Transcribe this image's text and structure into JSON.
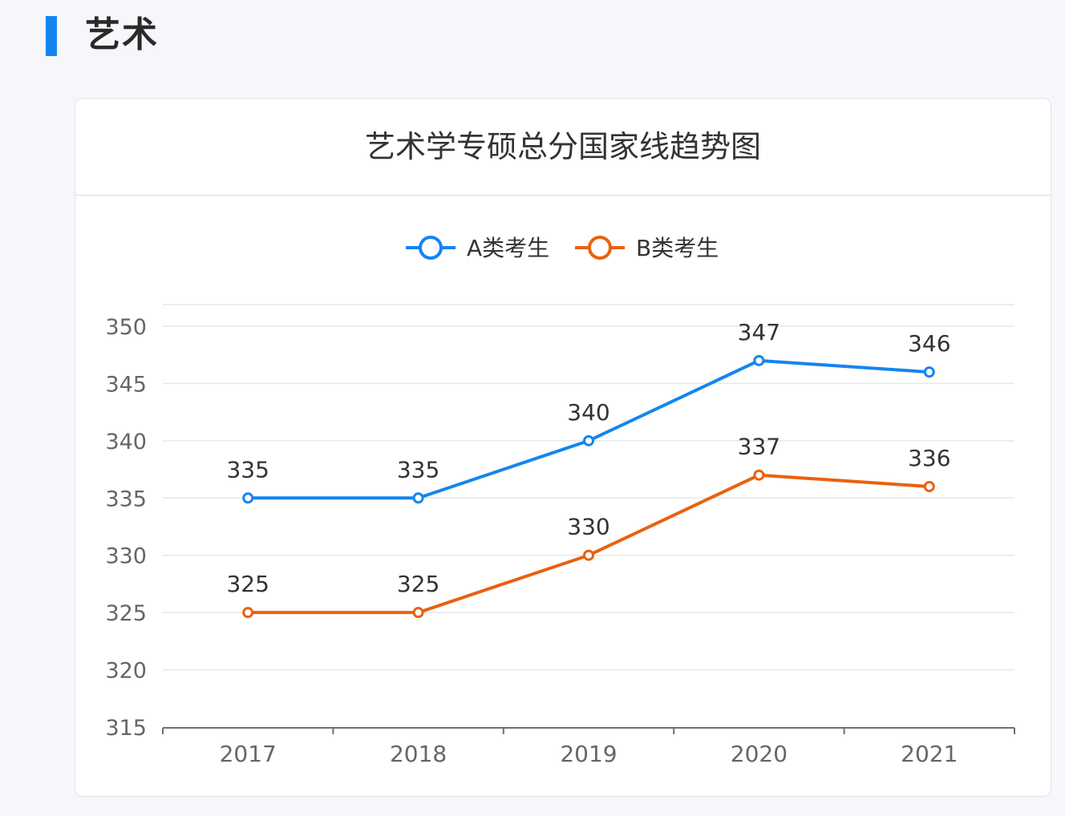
{
  "section": {
    "title": "艺术"
  },
  "colors": {
    "accent": "#1684f0",
    "series_a": "#1684f0",
    "series_b": "#e8620e"
  },
  "chart_data": {
    "type": "line",
    "title": "艺术学专硕总分国家线趋势图",
    "xlabel": "",
    "ylabel": "",
    "categories": [
      "2017",
      "2018",
      "2019",
      "2020",
      "2021"
    ],
    "ylim": [
      315,
      350
    ],
    "yticks": [
      315,
      320,
      325,
      330,
      335,
      340,
      345,
      350
    ],
    "grid": true,
    "legend_position": "top-center",
    "series": [
      {
        "name": "A类考生",
        "color": "#1684f0",
        "values": [
          335,
          335,
          340,
          347,
          346
        ]
      },
      {
        "name": "B类考生",
        "color": "#e8620e",
        "values": [
          325,
          325,
          330,
          337,
          336
        ]
      }
    ]
  }
}
